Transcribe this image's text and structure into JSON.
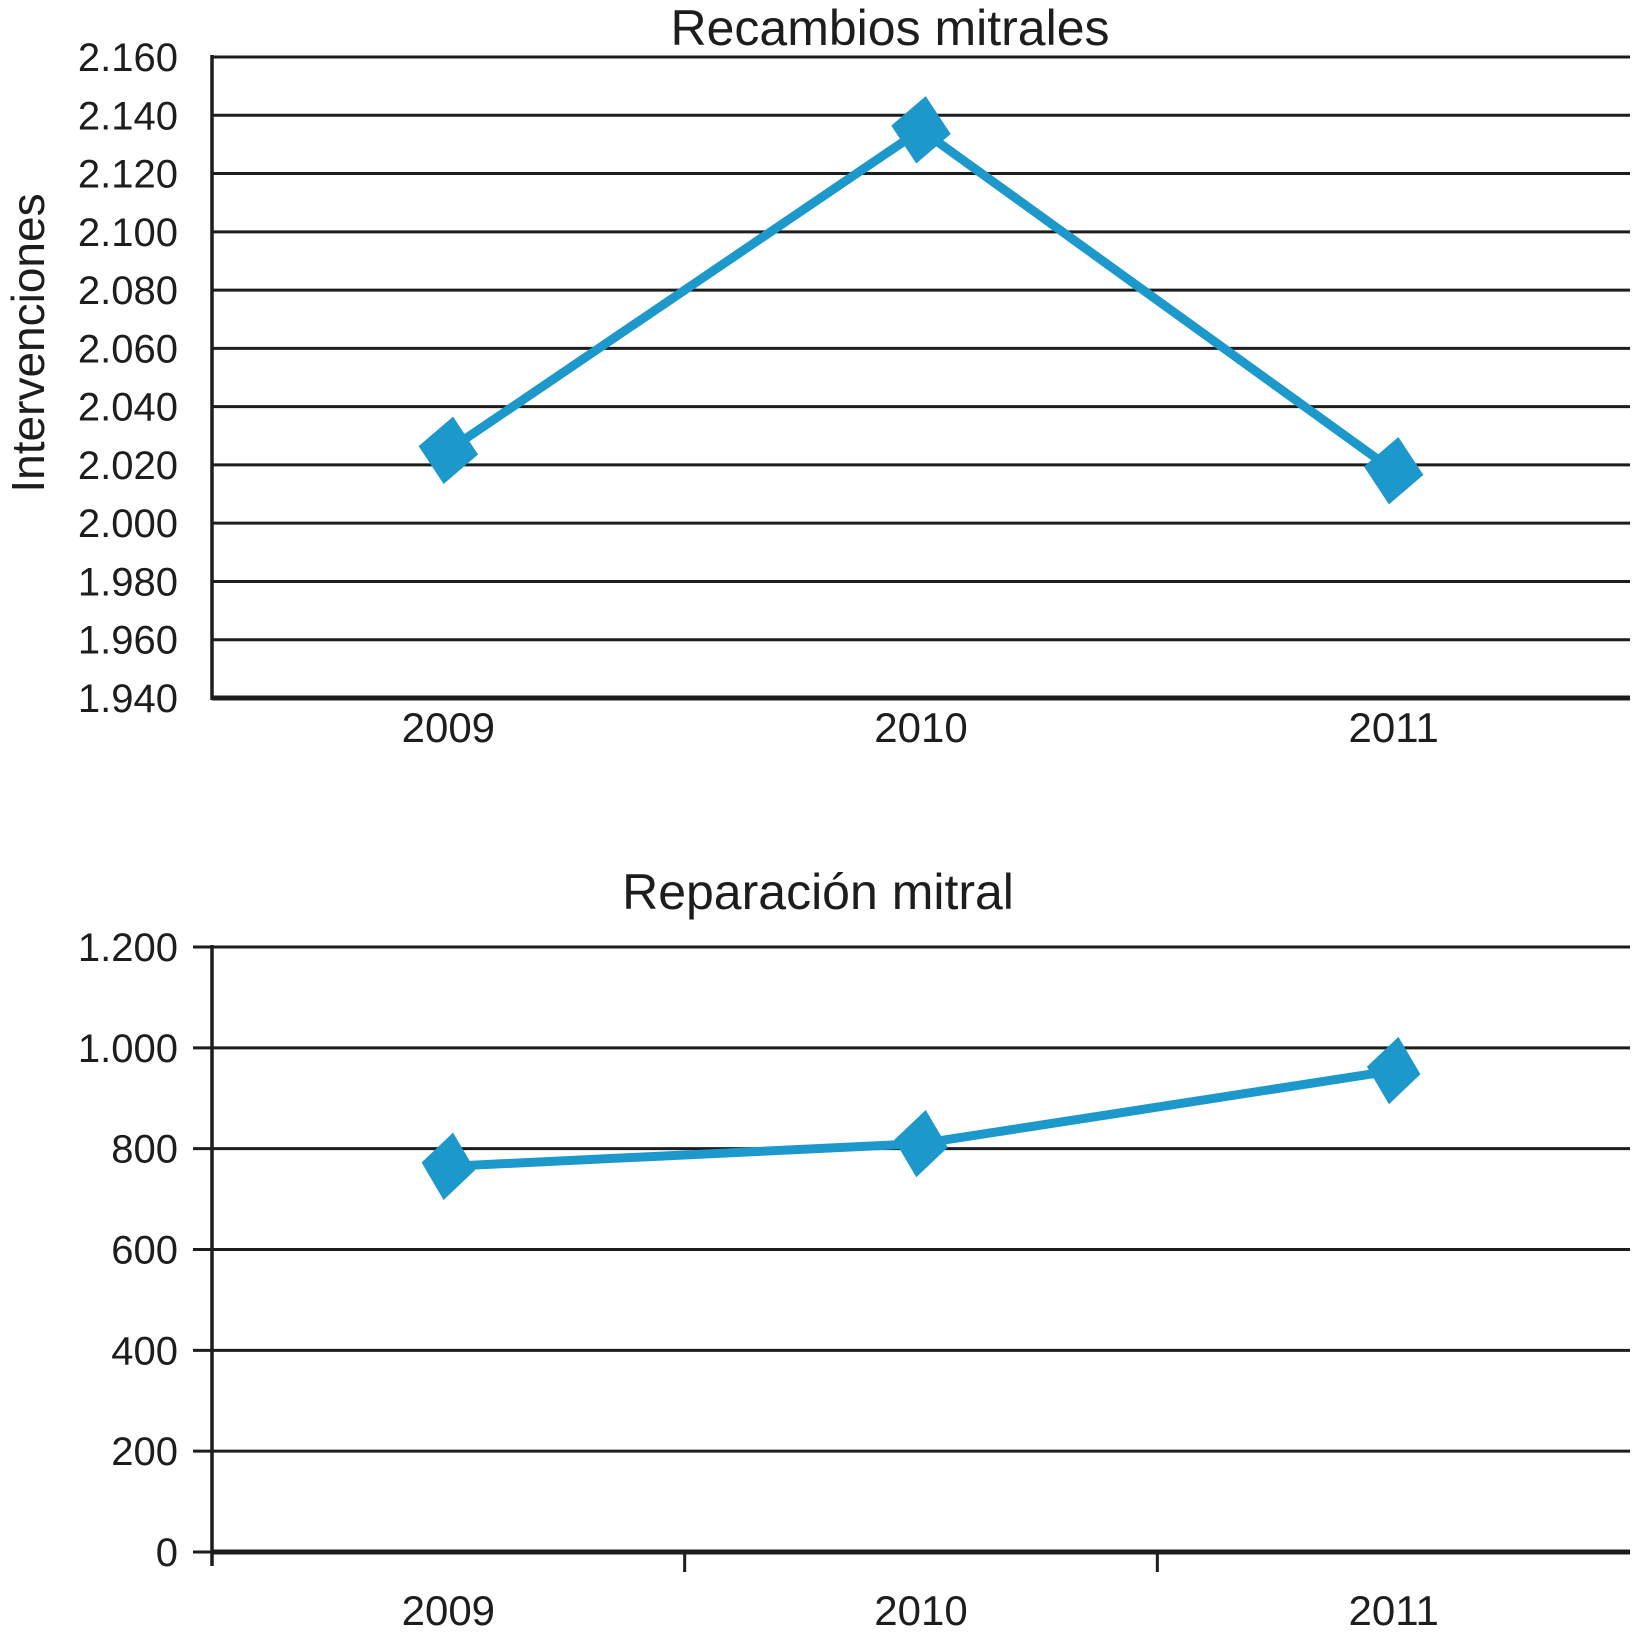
{
  "chart_data": [
    {
      "type": "line",
      "title": "Recambios mitrales",
      "ylabel": "Intervenciones",
      "xlabel": "",
      "categories": [
        "2009",
        "2010",
        "2011"
      ],
      "values": [
        2025,
        2135,
        2018
      ],
      "ylim": [
        1940,
        2160
      ],
      "yticks": [
        2160,
        2140,
        2120,
        2100,
        2080,
        2060,
        2040,
        2020,
        2000,
        1980,
        1960,
        1940
      ],
      "yticklabels": [
        "2.160",
        "2.140",
        "2.120",
        "2.100",
        "2.080",
        "2.060",
        "2.040",
        "2.020",
        "2.000",
        "1.980",
        "1.960",
        "1.940"
      ],
      "grid": true,
      "legend": false,
      "marker": "diamond",
      "line_color": "#1C98CB"
    },
    {
      "type": "line",
      "title": "Reparación mitral",
      "ylabel": "",
      "xlabel": "",
      "categories": [
        "2009",
        "2010",
        "2011"
      ],
      "values": [
        765,
        810,
        955
      ],
      "ylim": [
        0,
        1200
      ],
      "yticks": [
        1200,
        1000,
        800,
        600,
        400,
        200,
        0
      ],
      "yticklabels": [
        "1.200",
        "1.000",
        "800",
        "600",
        "400",
        "200",
        "0"
      ],
      "grid": true,
      "legend": false,
      "marker": "diamond",
      "line_color": "#1C98CB"
    }
  ],
  "colors": {
    "series": "#1C98CB",
    "ink": "#1d1d1b"
  }
}
